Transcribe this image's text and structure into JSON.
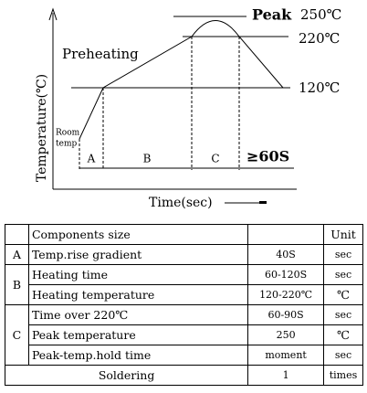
{
  "diagram": {
    "y_axis_label": "Temperature(℃)",
    "x_axis_label": "Time(sec)",
    "preheating": "Preheating",
    "peak": "Peak",
    "peak_temp": "250℃",
    "upper_temp": "220℃",
    "lower_temp": "120℃",
    "room_temp": [
      "Room",
      "temp"
    ],
    "segments": [
      "A",
      "B",
      "C"
    ],
    "hold": "≥60S"
  },
  "table": {
    "header": [
      "Components size",
      "Unit"
    ],
    "rows": [
      [
        "A",
        "Temp.rise gradient",
        "40S",
        "sec"
      ],
      [
        "B",
        "Heating time",
        "60-120S",
        "sec"
      ],
      [
        "Heating temperature",
        "120-220℃",
        "℃"
      ],
      [
        "C",
        "Time over 220℃",
        "60-90S",
        "sec"
      ],
      [
        "Peak temperature",
        "250",
        "℃"
      ],
      [
        "Peak-temp.hold time",
        "moment",
        "sec"
      ],
      [
        "Soldering",
        "1",
        "times"
      ]
    ]
  }
}
